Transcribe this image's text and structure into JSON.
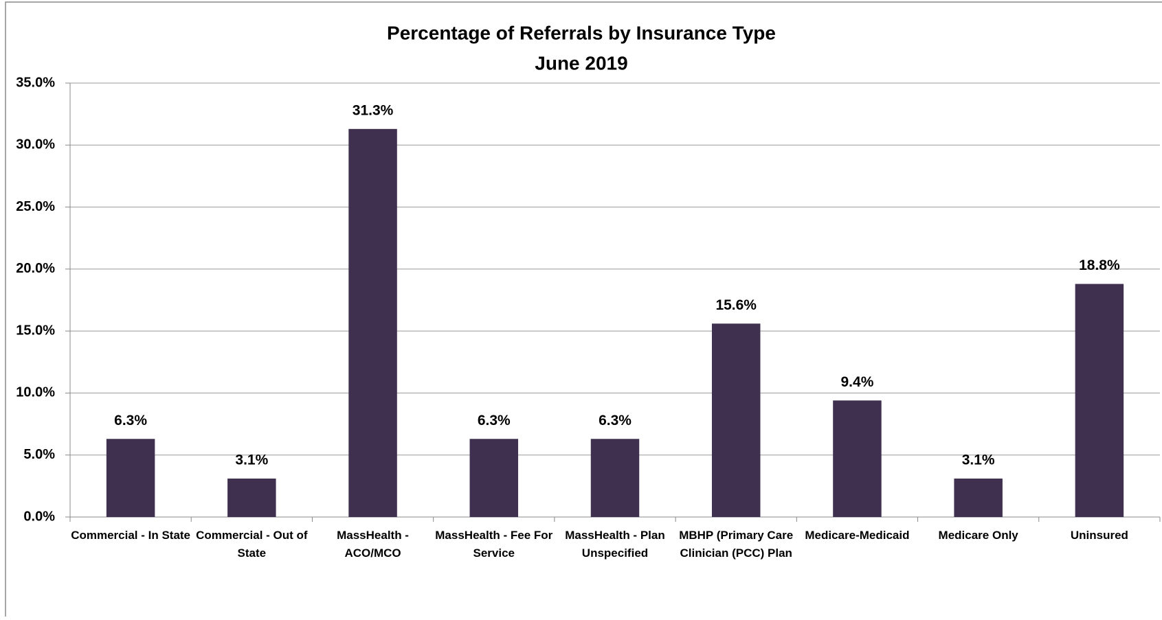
{
  "chart_data": {
    "type": "bar",
    "title": "Percentage of Referrals by Insurance Type",
    "subtitle": "June 2019",
    "categories": [
      "Commercial - In State",
      "Commercial - Out of State",
      "MassHealth - ACO/MCO",
      "MassHealth - Fee For Service",
      "MassHealth - Plan Unspecified",
      "MBHP (Primary Care Clinician (PCC) Plan",
      "Medicare-Medicaid",
      "Medicare Only",
      "Uninsured"
    ],
    "values": [
      6.3,
      3.1,
      31.3,
      6.3,
      6.3,
      15.6,
      9.4,
      3.1,
      18.8
    ],
    "value_labels": [
      "6.3%",
      "3.1%",
      "31.3%",
      "6.3%",
      "6.3%",
      "15.6%",
      "9.4%",
      "3.1%",
      "18.8%"
    ],
    "color": "#3f3050",
    "ylim": [
      0,
      35
    ],
    "yticks": [
      {
        "value": 0,
        "label": "0.0%"
      },
      {
        "value": 5,
        "label": "5.0%"
      },
      {
        "value": 10,
        "label": "10.0%"
      },
      {
        "value": 15,
        "label": "15.0%"
      },
      {
        "value": 20,
        "label": "20.0%"
      },
      {
        "value": 25,
        "label": "25.0%"
      },
      {
        "value": 30,
        "label": "30.0%"
      },
      {
        "value": 35,
        "label": "35.0%"
      }
    ],
    "grid": true
  }
}
